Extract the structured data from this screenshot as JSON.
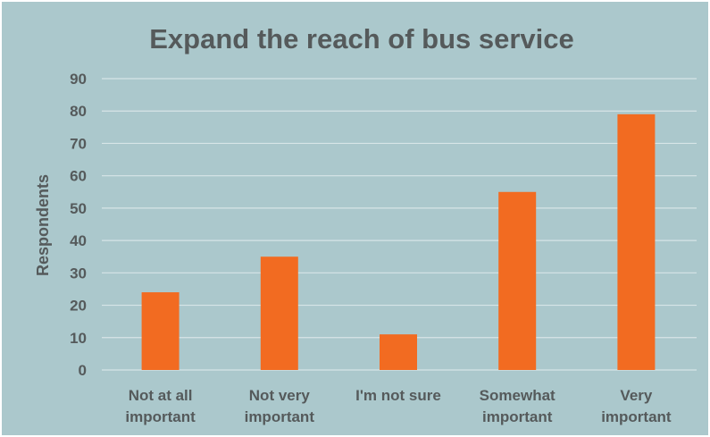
{
  "colors": {
    "background": "#abc8cc",
    "bar": "#f26b21",
    "gridline": "#d7e5e7",
    "text": "#555a5b"
  },
  "chart_data": {
    "type": "bar",
    "title": "Expand the reach of bus service",
    "xlabel": "",
    "ylabel": "Respondents",
    "categories": [
      [
        "Not at all",
        "important"
      ],
      [
        "Not very",
        "important"
      ],
      [
        "I'm not sure"
      ],
      [
        "Somewhat",
        "important"
      ],
      [
        "Very",
        "important"
      ]
    ],
    "values": [
      24,
      35,
      11,
      55,
      79
    ],
    "ylim": [
      0,
      90
    ],
    "yticks": [
      0,
      10,
      20,
      30,
      40,
      50,
      60,
      70,
      80,
      90
    ],
    "grid": true,
    "legend": "none"
  }
}
